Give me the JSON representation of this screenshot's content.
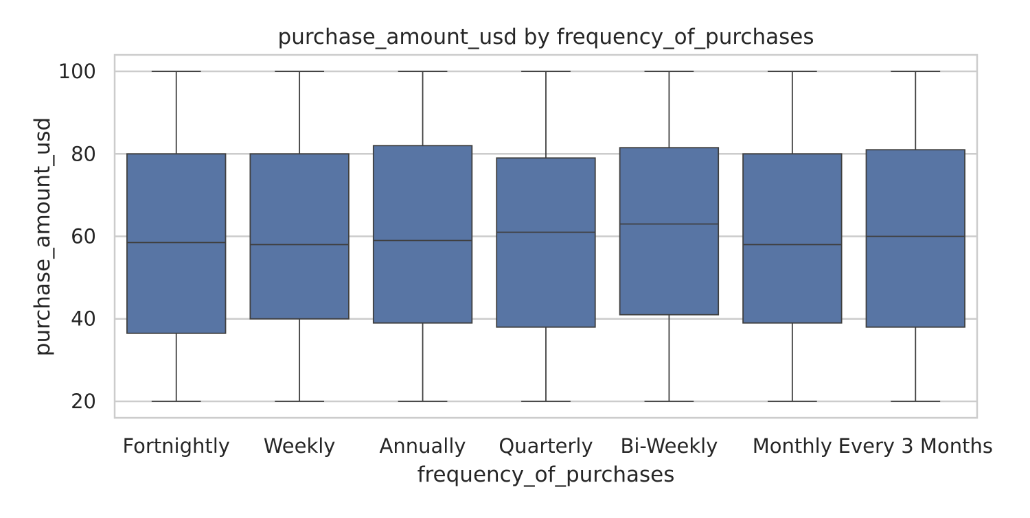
{
  "chart_data": {
    "type": "box",
    "title": "purchase_amount_usd by frequency_of_purchases",
    "xlabel": "frequency_of_purchases",
    "ylabel": "purchase_amount_usd",
    "ylim": [
      16,
      104
    ],
    "yticks": [
      20,
      40,
      60,
      80,
      100
    ],
    "grid": true,
    "colors": {
      "box_fill": "#5875a4",
      "box_edge": "#3f3f3f",
      "grid": "#cccccc",
      "spine": "#cccccc",
      "text": "#262626"
    },
    "categories": [
      "Fortnightly",
      "Weekly",
      "Annually",
      "Quarterly",
      "Bi-Weekly",
      "Monthly",
      "Every 3 Months"
    ],
    "boxes": [
      {
        "category": "Fortnightly",
        "min": 20,
        "q1": 36.5,
        "median": 58.5,
        "q3": 80,
        "max": 100
      },
      {
        "category": "Weekly",
        "min": 20,
        "q1": 40,
        "median": 58,
        "q3": 80,
        "max": 100
      },
      {
        "category": "Annually",
        "min": 20,
        "q1": 39,
        "median": 59,
        "q3": 82,
        "max": 100
      },
      {
        "category": "Quarterly",
        "min": 20,
        "q1": 38,
        "median": 61,
        "q3": 79,
        "max": 100
      },
      {
        "category": "Bi-Weekly",
        "min": 20,
        "q1": 41,
        "median": 63,
        "q3": 81.5,
        "max": 100
      },
      {
        "category": "Monthly",
        "min": 20,
        "q1": 39,
        "median": 58,
        "q3": 80,
        "max": 100
      },
      {
        "category": "Every 3 Months",
        "min": 20,
        "q1": 38,
        "median": 60,
        "q3": 81,
        "max": 100
      }
    ]
  }
}
